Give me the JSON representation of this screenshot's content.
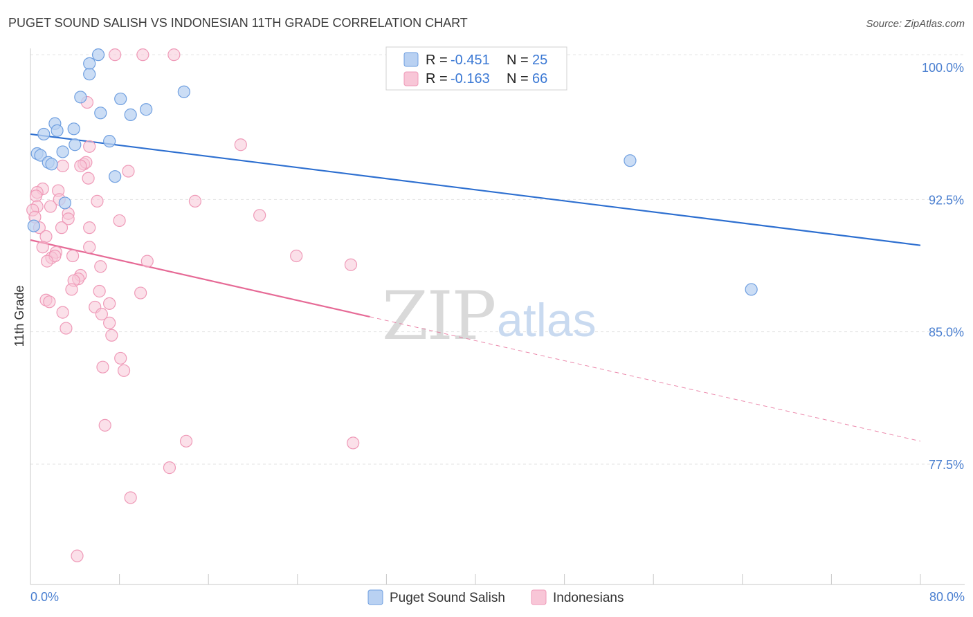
{
  "chart_data": {
    "type": "scatter",
    "title": "PUGET SOUND SALISH VS INDONESIAN 11TH GRADE CORRELATION CHART",
    "source": "Source: ZipAtlas.com",
    "xlabel": "",
    "ylabel": "11th Grade",
    "xlim": [
      0,
      80
    ],
    "ylim": [
      70.0,
      100.7
    ],
    "x_tick_labels": {
      "min": "0.0%",
      "max": "80.0%"
    },
    "y_ticks": [
      {
        "value": 100.0,
        "label": "100.0%"
      },
      {
        "value": 92.5,
        "label": "92.5%"
      },
      {
        "value": 85.0,
        "label": "85.0%"
      },
      {
        "value": 77.5,
        "label": "77.5%"
      }
    ],
    "watermark": {
      "zip": "ZIP",
      "atlas": "atlas"
    },
    "legend": {
      "rows": [
        {
          "r_label": "R =",
          "r_value": "-0.451",
          "n_label": "N =",
          "n_value": "25"
        },
        {
          "r_label": "R =",
          "r_value": "-0.163",
          "n_label": "N =",
          "n_value": "66"
        }
      ]
    },
    "series": [
      {
        "name": "Puget Sound Salish",
        "color": "#6f9fe0",
        "fill": "#b9d1f2",
        "line_color": "#2d6fd0",
        "trend": {
          "x": [
            0,
            80
          ],
          "y": [
            96.2,
            89.9
          ],
          "dashed_from": null
        },
        "points": [
          [
            6.1,
            100.7
          ],
          [
            5.3,
            100.2
          ],
          [
            5.3,
            99.6
          ],
          [
            13.8,
            98.6
          ],
          [
            4.5,
            98.3
          ],
          [
            8.1,
            98.2
          ],
          [
            10.4,
            97.6
          ],
          [
            6.3,
            97.4
          ],
          [
            9.0,
            97.3
          ],
          [
            2.2,
            96.8
          ],
          [
            3.9,
            96.5
          ],
          [
            2.4,
            96.4
          ],
          [
            1.2,
            96.2
          ],
          [
            7.1,
            95.8
          ],
          [
            4.0,
            95.6
          ],
          [
            2.9,
            95.2
          ],
          [
            0.6,
            95.1
          ],
          [
            0.9,
            95.0
          ],
          [
            1.6,
            94.6
          ],
          [
            1.9,
            94.5
          ],
          [
            53.9,
            94.7
          ],
          [
            7.6,
            93.8
          ],
          [
            3.1,
            92.3
          ],
          [
            0.3,
            91.0
          ],
          [
            64.8,
            87.4
          ]
        ]
      },
      {
        "name": "Indonesians",
        "color": "#ef9ab8",
        "fill": "#f8c6d7",
        "line_color": "#e66a96",
        "trend": {
          "x": [
            0,
            80
          ],
          "y": [
            90.2,
            78.8
          ],
          "dashed_from": 30.5
        },
        "points": [
          [
            7.6,
            100.7
          ],
          [
            10.1,
            100.7
          ],
          [
            12.9,
            100.7
          ],
          [
            5.1,
            98.0
          ],
          [
            18.9,
            95.6
          ],
          [
            5.3,
            95.5
          ],
          [
            4.8,
            94.5
          ],
          [
            5.0,
            94.6
          ],
          [
            2.9,
            94.4
          ],
          [
            4.5,
            94.4
          ],
          [
            8.8,
            94.1
          ],
          [
            5.2,
            93.7
          ],
          [
            1.1,
            93.1
          ],
          [
            0.6,
            92.9
          ],
          [
            2.5,
            93.0
          ],
          [
            2.6,
            92.5
          ],
          [
            0.5,
            92.7
          ],
          [
            6.0,
            92.4
          ],
          [
            14.8,
            92.4
          ],
          [
            0.6,
            92.1
          ],
          [
            1.8,
            92.1
          ],
          [
            0.2,
            91.9
          ],
          [
            3.4,
            91.7
          ],
          [
            20.6,
            91.6
          ],
          [
            0.4,
            91.5
          ],
          [
            3.4,
            91.4
          ],
          [
            8.0,
            91.3
          ],
          [
            0.8,
            90.9
          ],
          [
            2.8,
            90.9
          ],
          [
            5.3,
            90.9
          ],
          [
            1.4,
            90.4
          ],
          [
            1.1,
            89.8
          ],
          [
            5.3,
            89.8
          ],
          [
            2.3,
            89.5
          ],
          [
            1.9,
            89.2
          ],
          [
            3.8,
            89.3
          ],
          [
            2.2,
            89.3
          ],
          [
            23.9,
            89.3
          ],
          [
            1.5,
            89.0
          ],
          [
            10.5,
            89.0
          ],
          [
            28.8,
            88.8
          ],
          [
            6.3,
            88.7
          ],
          [
            4.5,
            88.2
          ],
          [
            4.3,
            88.0
          ],
          [
            3.9,
            87.9
          ],
          [
            3.7,
            87.4
          ],
          [
            6.2,
            87.3
          ],
          [
            9.9,
            87.2
          ],
          [
            1.4,
            86.8
          ],
          [
            1.7,
            86.7
          ],
          [
            7.1,
            86.6
          ],
          [
            5.8,
            86.4
          ],
          [
            2.9,
            86.1
          ],
          [
            6.4,
            86.0
          ],
          [
            7.1,
            85.5
          ],
          [
            3.2,
            85.2
          ],
          [
            7.3,
            84.8
          ],
          [
            8.1,
            83.5
          ],
          [
            6.5,
            83.0
          ],
          [
            8.4,
            82.8
          ],
          [
            6.7,
            79.7
          ],
          [
            14.0,
            78.8
          ],
          [
            29.0,
            78.7
          ],
          [
            12.5,
            77.3
          ],
          [
            9.0,
            75.6
          ],
          [
            4.2,
            72.3
          ]
        ]
      }
    ]
  }
}
